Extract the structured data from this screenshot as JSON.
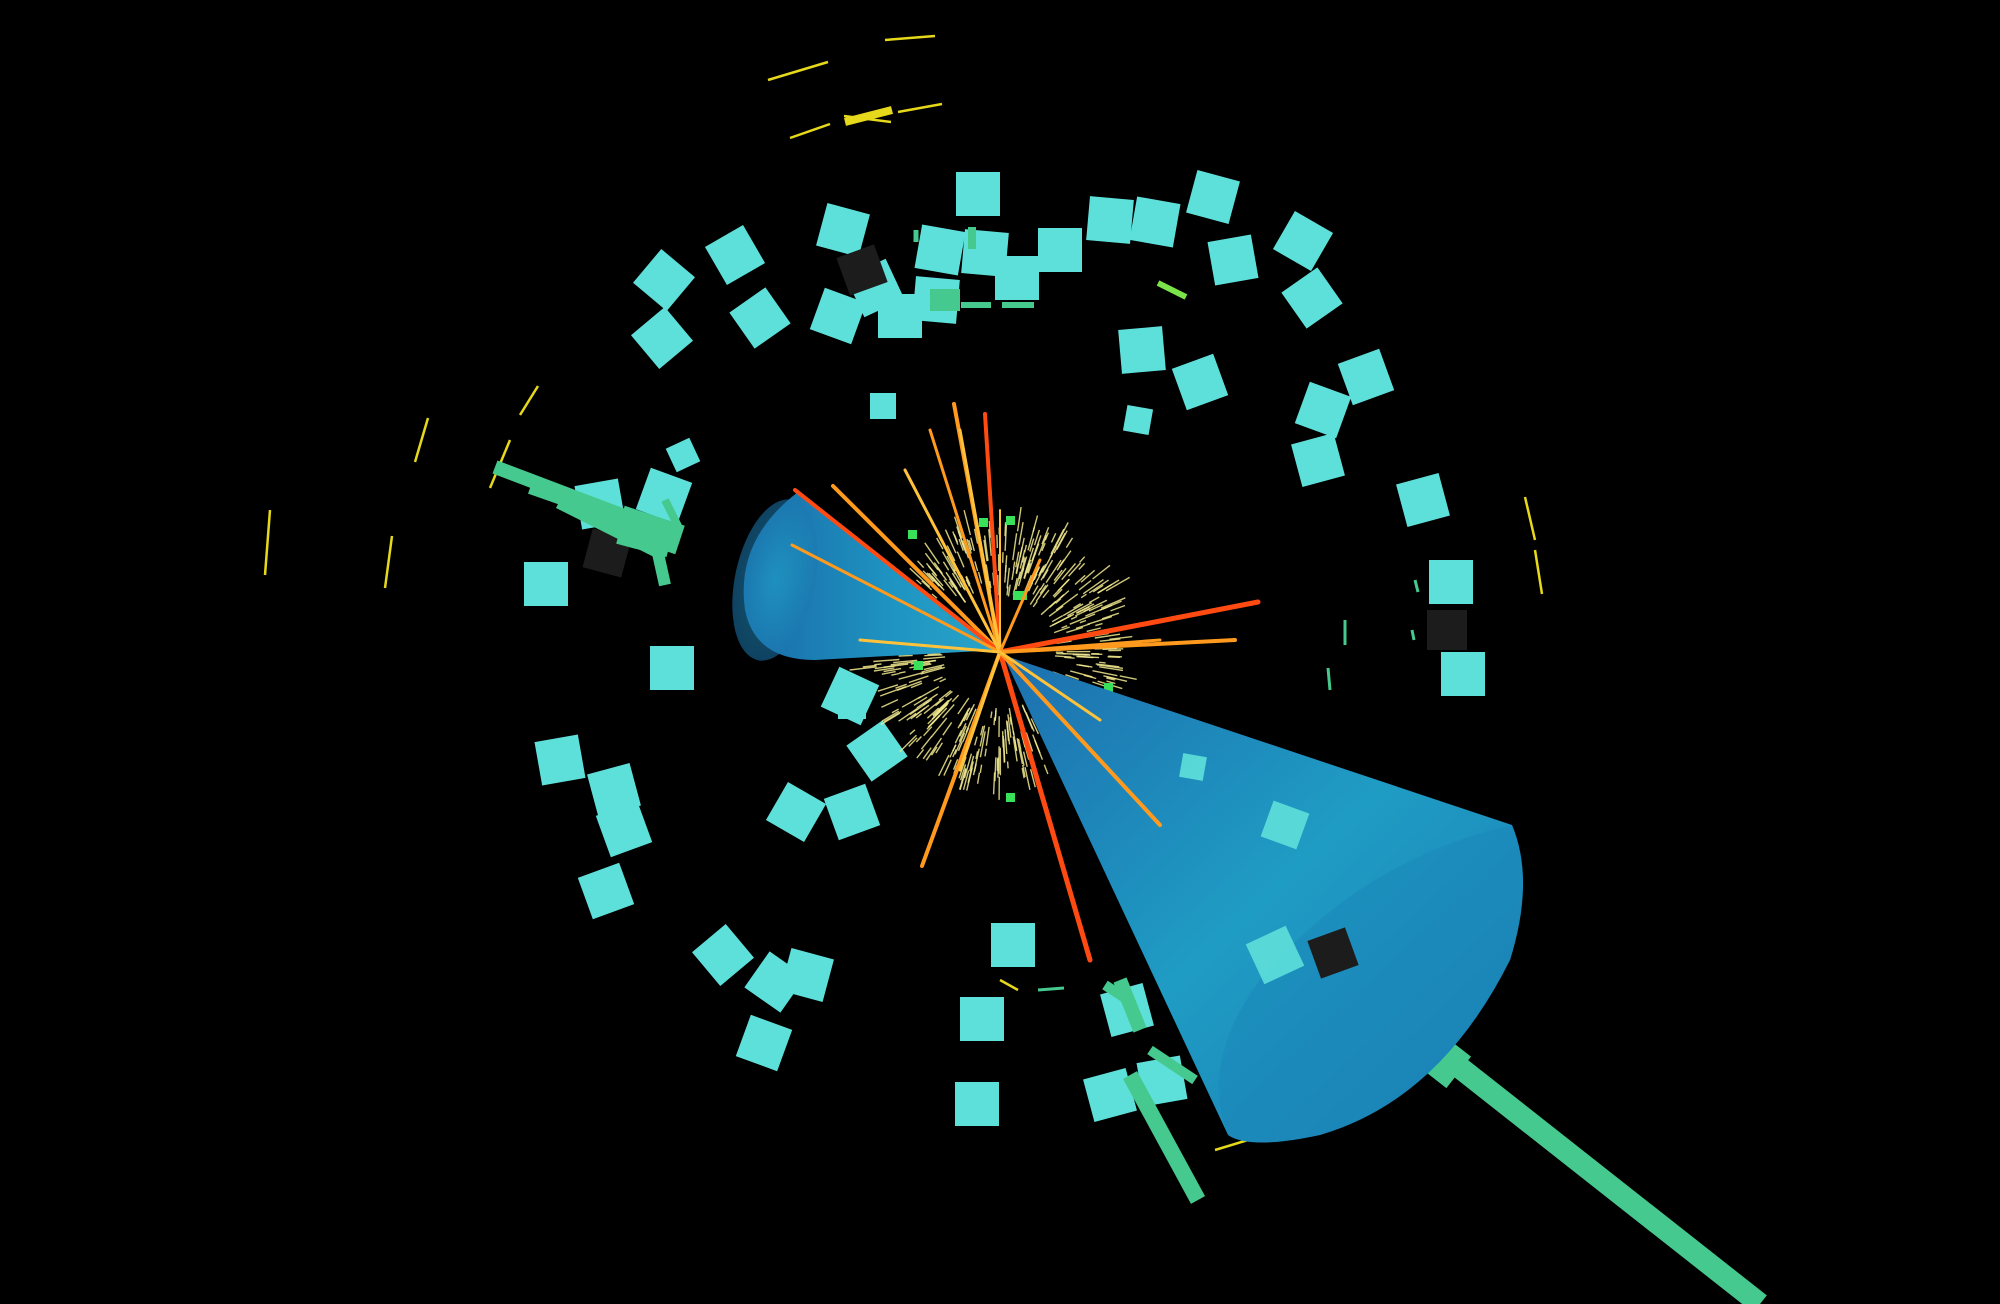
{
  "scene": {
    "background": "#000000",
    "colors": {
      "muon_chamber": "#5ee0da",
      "muon_chamber_dark": "#1c1c1c",
      "calo_tower": "#46c98e",
      "tracker_hits": "#f2ea8f",
      "track_high": "#ff4a12",
      "track_mid": "#ff9a1e",
      "track_low": "#ffc23a",
      "jet_cone": "#1f8fc0",
      "outer_hits": "#e6d81a",
      "vertex_hit": "#39e05a"
    }
  }
}
